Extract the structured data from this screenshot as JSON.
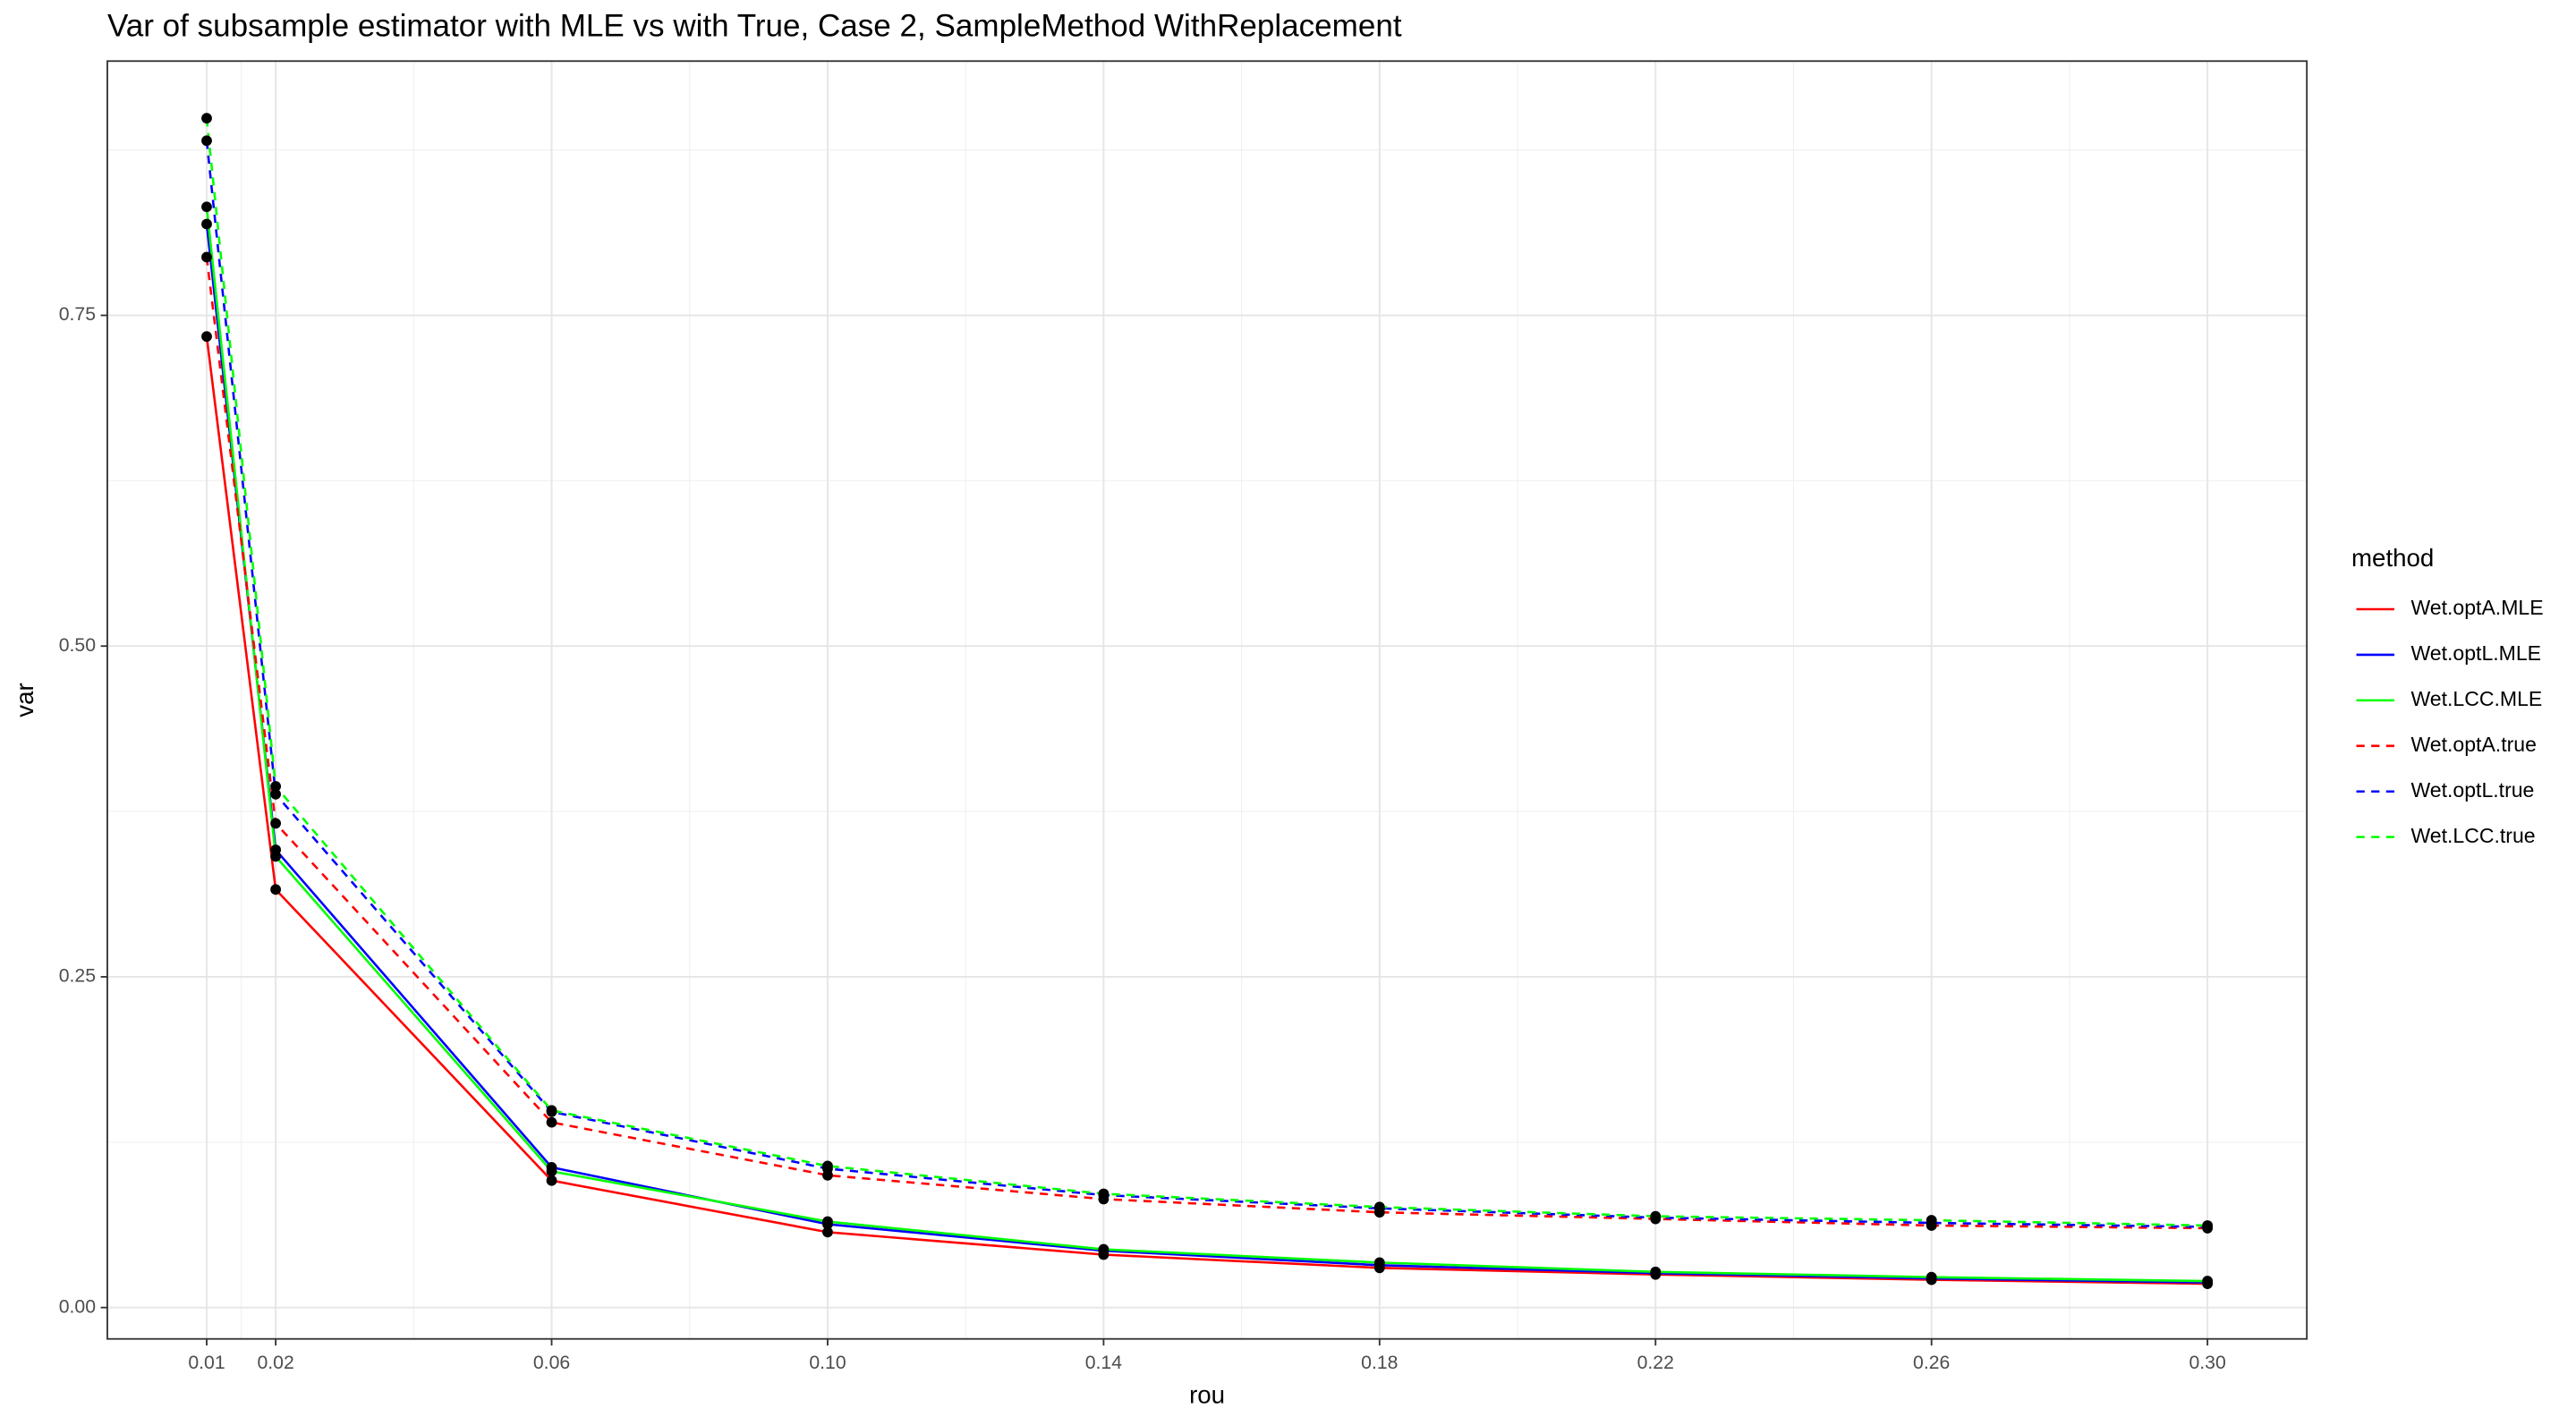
{
  "chart_data": {
    "type": "line",
    "title": "Var of subsample estimator with MLE vs with True, Case 2, SampleMethod WithReplacement",
    "x_label": "rou",
    "y_label": "var",
    "legend_title": "method",
    "x": [
      0.01,
      0.02,
      0.06,
      0.1,
      0.14,
      0.18,
      0.22,
      0.26,
      0.3
    ],
    "series": [
      {
        "name": "Wet.optA.MLE",
        "color": "#ff0000",
        "linestyle": "solid",
        "values": [
          0.734,
          0.316,
          0.096,
          0.057,
          0.04,
          0.03,
          0.025,
          0.021,
          0.018
        ]
      },
      {
        "name": "Wet.optL.MLE",
        "color": "#0000ff",
        "linestyle": "solid",
        "values": [
          0.819,
          0.346,
          0.106,
          0.063,
          0.043,
          0.032,
          0.026,
          0.022,
          0.019
        ]
      },
      {
        "name": "Wet.LCC.MLE",
        "color": "#00ff00",
        "linestyle": "solid",
        "values": [
          0.832,
          0.341,
          0.103,
          0.065,
          0.044,
          0.034,
          0.027,
          0.023,
          0.02
        ]
      },
      {
        "name": "Wet.optA.true",
        "color": "#ff0000",
        "linestyle": "dashed",
        "values": [
          0.794,
          0.366,
          0.14,
          0.1,
          0.082,
          0.072,
          0.067,
          0.062,
          0.06
        ]
      },
      {
        "name": "Wet.optL.true",
        "color": "#0000ff",
        "linestyle": "dashed",
        "values": [
          0.882,
          0.388,
          0.148,
          0.105,
          0.085,
          0.075,
          0.068,
          0.064,
          0.061
        ]
      },
      {
        "name": "Wet.LCC.true",
        "color": "#00ff00",
        "linestyle": "dashed",
        "values": [
          0.899,
          0.394,
          0.149,
          0.107,
          0.086,
          0.076,
          0.069,
          0.066,
          0.062
        ]
      }
    ],
    "point_color": "#000000",
    "xlim": [
      -0.0044,
      0.3144
    ],
    "ylim": [
      -0.0237,
      0.9422
    ],
    "xticks": [
      0.01,
      0.02,
      0.06,
      {
        "value": 0.1,
        "label": "0.10"
      },
      0.14,
      0.18,
      0.22,
      0.26,
      {
        "value": 0.3,
        "label": "0.30"
      }
    ],
    "yticks": [
      {
        "value": 0,
        "label": "0.00"
      },
      {
        "value": 0.25,
        "label": "0.25"
      },
      {
        "value": 0.5,
        "label": "0.50"
      },
      {
        "value": 0.75,
        "label": "0.75"
      }
    ],
    "grid": true,
    "legend": "right"
  }
}
